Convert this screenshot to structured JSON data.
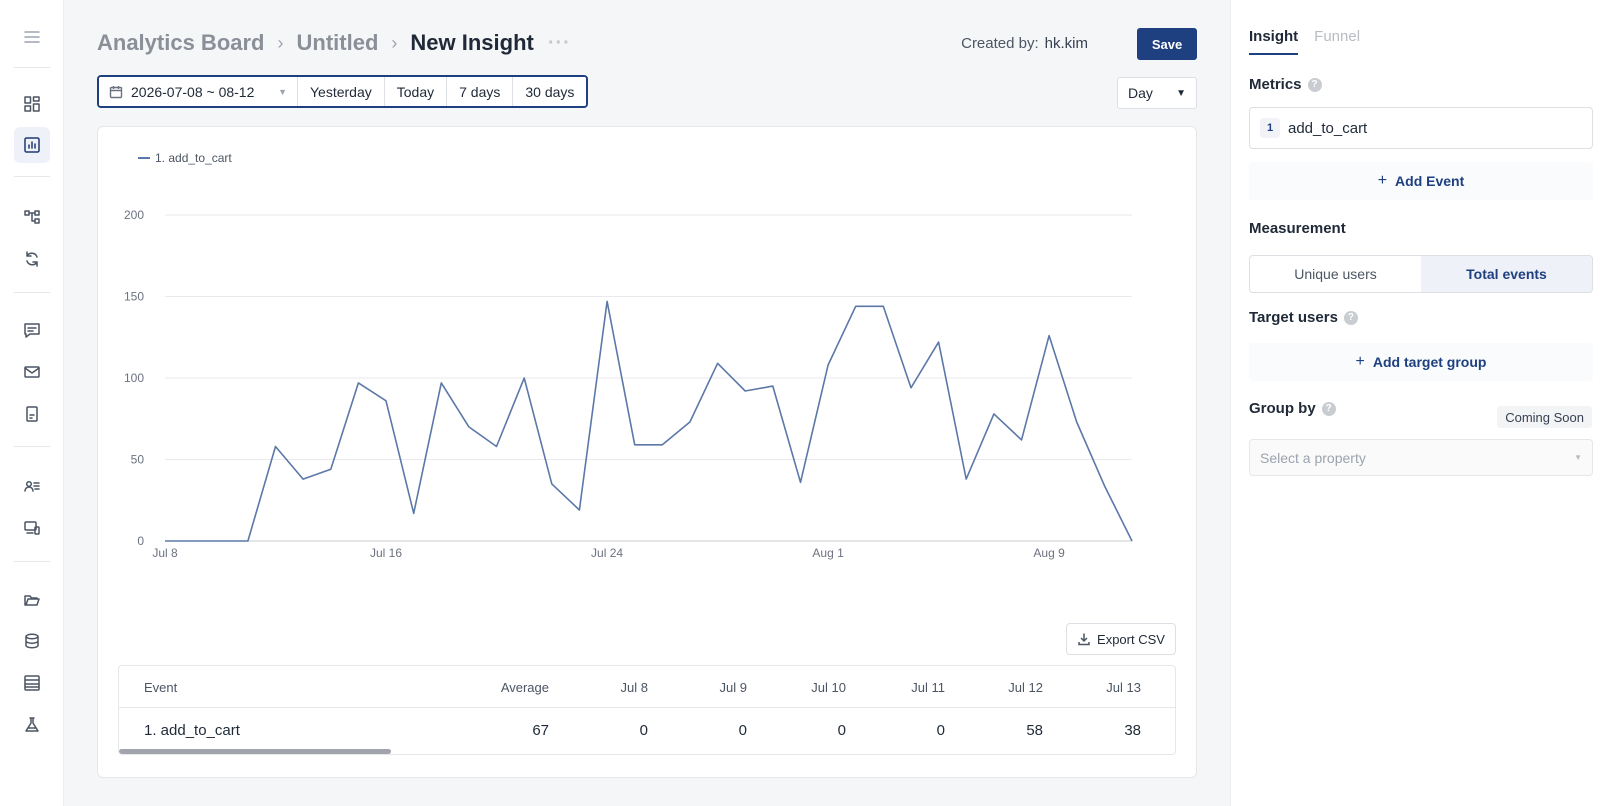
{
  "breadcrumb": [
    "Analytics Board",
    "Untitled",
    "New Insight"
  ],
  "header": {
    "created_by_label": "Created by:",
    "created_by_user": "hk.kim",
    "save_label": "Save",
    "more_icon": "more-dots-icon"
  },
  "date_range": {
    "value": "2026-07-08 ~ 08-12",
    "presets": [
      "Yesterday",
      "Today",
      "7 days",
      "30 days"
    ]
  },
  "granularity": "Day",
  "export_label": "Export CSV",
  "rail_icons": [
    "menu-icon",
    "dashboard-icon",
    "chart-icon",
    "flow-icon",
    "refresh-icon",
    "message-icon",
    "mail-icon",
    "document-icon",
    "users-list-icon",
    "devices-icon",
    "folder-icon",
    "database-icon",
    "table-icon",
    "flask-icon"
  ],
  "chart_data": {
    "type": "line",
    "legend": "1. add_to_cart",
    "x_ticks": [
      "Jul 8",
      "Jul 16",
      "Jul 24",
      "Aug 1",
      "Aug 9"
    ],
    "y_ticks": [
      "0",
      "50",
      "100",
      "150",
      "200"
    ],
    "ylim": [
      0,
      200
    ],
    "grid": true,
    "legend_position": "top-left",
    "color": "#5b78a8",
    "x": [
      "Jul 8",
      "Jul 9",
      "Jul 10",
      "Jul 11",
      "Jul 12",
      "Jul 13",
      "Jul 14",
      "Jul 15",
      "Jul 16",
      "Jul 17",
      "Jul 18",
      "Jul 19",
      "Jul 20",
      "Jul 21",
      "Jul 22",
      "Jul 23",
      "Jul 24",
      "Jul 25",
      "Jul 26",
      "Jul 27",
      "Jul 28",
      "Jul 29",
      "Jul 30",
      "Jul 31",
      "Aug 1",
      "Aug 2",
      "Aug 3",
      "Aug 4",
      "Aug 5",
      "Aug 6",
      "Aug 7",
      "Aug 8",
      "Aug 9",
      "Aug 10",
      "Aug 11",
      "Aug 12"
    ],
    "series": [
      {
        "name": "1. add_to_cart",
        "values": [
          0,
          0,
          0,
          0,
          58,
          38,
          44,
          97,
          86,
          17,
          97,
          70,
          58,
          100,
          35,
          19,
          147,
          59,
          59,
          73,
          109,
          92,
          95,
          36,
          108,
          144,
          144,
          94,
          122,
          38,
          78,
          62,
          126,
          73,
          34,
          0
        ]
      }
    ]
  },
  "table": {
    "headers": [
      "Event",
      "Average",
      "Jul 8",
      "Jul 9",
      "Jul 10",
      "Jul 11",
      "Jul 12",
      "Jul 13"
    ],
    "rows": [
      [
        "1. add_to_cart",
        "67",
        "0",
        "0",
        "0",
        "0",
        "58",
        "38"
      ]
    ]
  },
  "side": {
    "tabs": [
      "Insight",
      "Funnel"
    ],
    "metrics_title": "Metrics",
    "metric": {
      "index": "1",
      "name": "add_to_cart"
    },
    "add_event": "Add Event",
    "measurement_title": "Measurement",
    "measurement_options": [
      "Unique users",
      "Total events"
    ],
    "target_title": "Target users",
    "add_target": "Add target group",
    "groupby_title": "Group by",
    "coming_soon": "Coming Soon",
    "select_placeholder": "Select a property"
  }
}
